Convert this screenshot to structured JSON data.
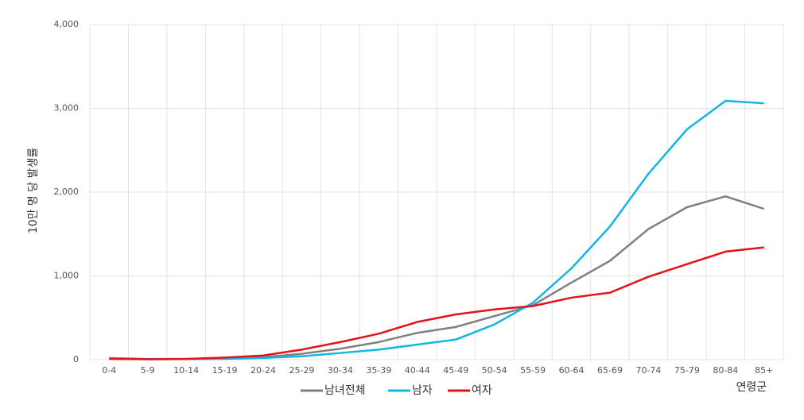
{
  "chart_data": {
    "type": "line",
    "y_label": "10만 명 당 발생률",
    "x_label": "연령군",
    "categories": [
      "0-4",
      "5-9",
      "10-14",
      "15-19",
      "20-24",
      "25-29",
      "30-34",
      "35-39",
      "40-44",
      "45-49",
      "50-54",
      "55-59",
      "60-64",
      "65-69",
      "70-74",
      "75-79",
      "80-84",
      "85+"
    ],
    "series": [
      {
        "name": "남녀전체",
        "color": "#808080",
        "values": [
          15,
          5,
          8,
          15,
          30,
          70,
          130,
          210,
          320,
          390,
          520,
          650,
          920,
          1180,
          1560,
          1820,
          1950,
          1800
        ]
      },
      {
        "name": "남자",
        "color": "#14b4e6",
        "values": [
          20,
          8,
          8,
          10,
          20,
          40,
          80,
          120,
          180,
          240,
          420,
          680,
          1090,
          1590,
          2220,
          2750,
          3090,
          3060
        ]
      },
      {
        "name": "여자",
        "color": "#e3111b",
        "values": [
          10,
          5,
          8,
          25,
          50,
          120,
          210,
          310,
          450,
          540,
          600,
          640,
          740,
          800,
          990,
          1140,
          1290,
          1340
        ]
      }
    ],
    "ylim": [
      0,
      4000
    ],
    "yticks": [
      0,
      {
        "value": 1000,
        "label": "1,000"
      },
      {
        "value": 2000,
        "label": "2,000"
      },
      {
        "value": 3000,
        "label": "3,000"
      },
      {
        "value": 4000,
        "label": "4,000"
      }
    ],
    "grid": true,
    "legend": "bottom"
  }
}
